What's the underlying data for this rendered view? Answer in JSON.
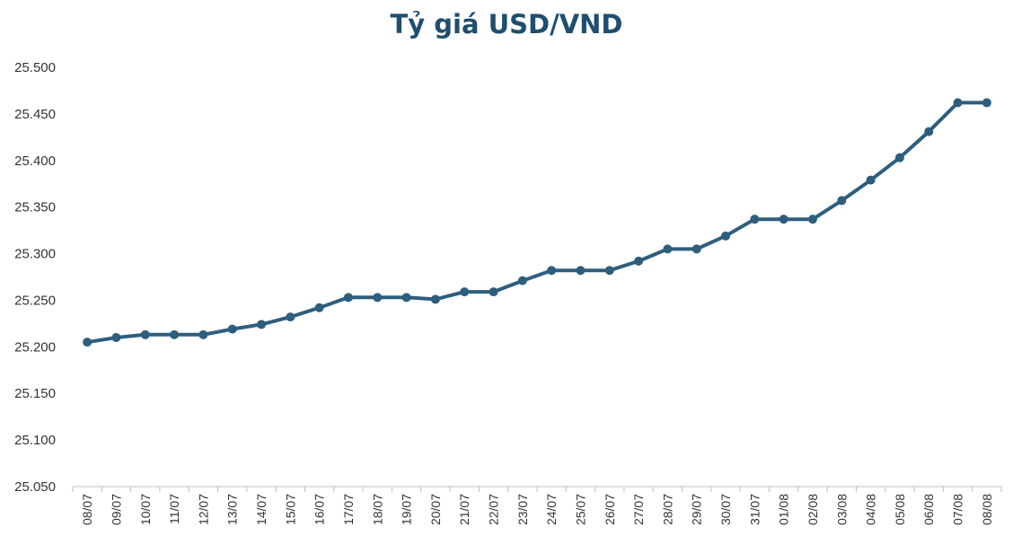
{
  "chart_data": {
    "type": "line",
    "title": "Tỷ giá USD/VND",
    "xlabel": "",
    "ylabel": "",
    "ylim": [
      25050,
      25500
    ],
    "y_ticks": [
      25050,
      25100,
      25150,
      25200,
      25250,
      25300,
      25350,
      25400,
      25450,
      25500
    ],
    "y_tick_labels": [
      "25.050",
      "25.100",
      "25.150",
      "25.200",
      "25.250",
      "25.300",
      "25.350",
      "25.400",
      "25.450",
      "25.500"
    ],
    "categories": [
      "08/07",
      "09/07",
      "10/07",
      "11/07",
      "12/07",
      "13/07",
      "14/07",
      "15/07",
      "16/07",
      "17/07",
      "18/07",
      "19/07",
      "20/07",
      "21/07",
      "22/07",
      "23/07",
      "24/07",
      "25/07",
      "26/07",
      "27/07",
      "28/07",
      "29/07",
      "30/07",
      "31/07",
      "01/08",
      "02/08",
      "03/08",
      "04/08",
      "05/08",
      "06/08",
      "07/08",
      "08/08"
    ],
    "series": [
      {
        "values": [
          25205,
          25210,
          25213,
          25213,
          25213,
          25219,
          25224,
          25232,
          25242,
          25253,
          25253,
          25253,
          25251,
          25259,
          25259,
          25271,
          25282,
          25282,
          25282,
          25292,
          25305,
          25305,
          25319,
          25337,
          25337,
          25337,
          25357,
          25379,
          25403,
          25431,
          25462,
          25462
        ],
        "color": "#2e5e7e"
      }
    ],
    "grid": false,
    "legend": "none"
  }
}
